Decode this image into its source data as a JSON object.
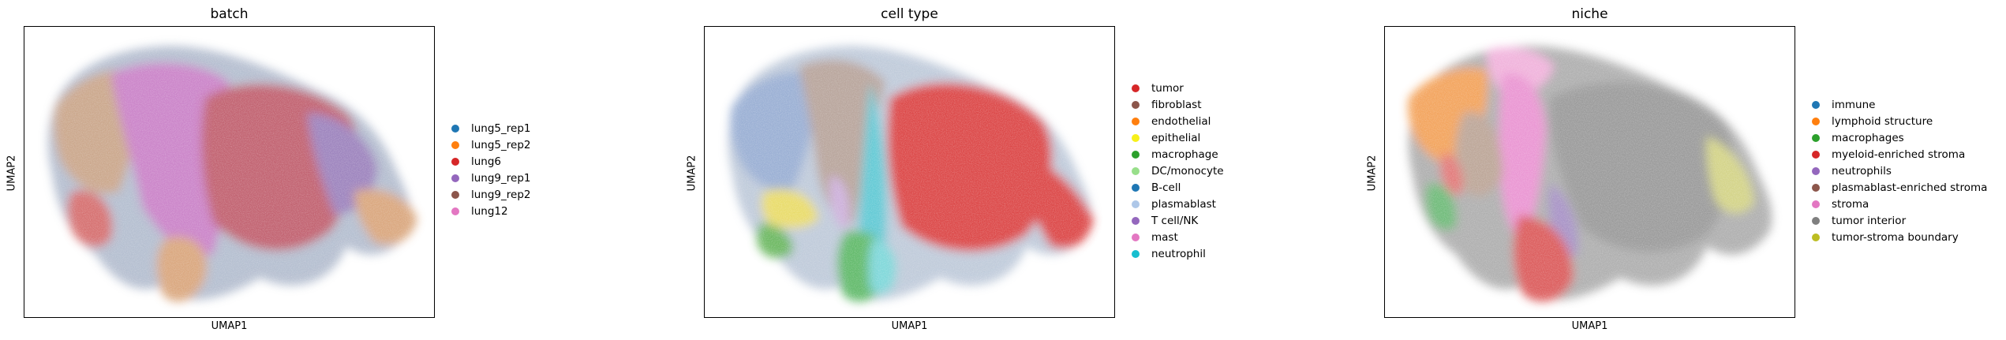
{
  "chart_data": [
    {
      "type": "scatter",
      "title": "batch",
      "xlabel": "UMAP1",
      "ylabel": "UMAP2",
      "legend_placement": "right",
      "grid": false,
      "series": [
        {
          "name": "lung5_rep1",
          "color": "#1f77b4"
        },
        {
          "name": "lung5_rep2",
          "color": "#ff7f0e"
        },
        {
          "name": "lung6",
          "color": "#d62728"
        },
        {
          "name": "lung9_rep1",
          "color": "#9467bd"
        },
        {
          "name": "lung9_rep2",
          "color": "#8c564b"
        },
        {
          "name": "lung12",
          "color": "#e377c2"
        }
      ]
    },
    {
      "type": "scatter",
      "title": "cell type",
      "xlabel": "UMAP1",
      "ylabel": "UMAP2",
      "legend_placement": "right",
      "grid": false,
      "series": [
        {
          "name": "tumor",
          "color": "#d62728"
        },
        {
          "name": "fibroblast",
          "color": "#8c564b"
        },
        {
          "name": "endothelial",
          "color": "#ff7f0e"
        },
        {
          "name": "epithelial",
          "color": "#f7f01a"
        },
        {
          "name": "macrophage",
          "color": "#2ca02c"
        },
        {
          "name": "DC/monocyte",
          "color": "#98df8a"
        },
        {
          "name": "B-cell",
          "color": "#1f77b4"
        },
        {
          "name": "plasmablast",
          "color": "#aec7e8"
        },
        {
          "name": "T cell/NK",
          "color": "#9467bd"
        },
        {
          "name": "mast",
          "color": "#e377c2"
        },
        {
          "name": "neutrophil",
          "color": "#17becf"
        }
      ]
    },
    {
      "type": "scatter",
      "title": "niche",
      "xlabel": "UMAP1",
      "ylabel": "UMAP2",
      "legend_placement": "right",
      "grid": false,
      "series": [
        {
          "name": "immune",
          "color": "#1f77b4"
        },
        {
          "name": "lymphoid structure",
          "color": "#ff7f0e"
        },
        {
          "name": "macrophages",
          "color": "#2ca02c"
        },
        {
          "name": "myeloid-enriched stroma",
          "color": "#d62728"
        },
        {
          "name": "neutrophils",
          "color": "#9467bd"
        },
        {
          "name": "plasmablast-enriched stroma",
          "color": "#8c564b"
        },
        {
          "name": "stroma",
          "color": "#e377c2"
        },
        {
          "name": "tumor interior",
          "color": "#7f7f7f"
        },
        {
          "name": "tumor-stroma boundary",
          "color": "#bcbd22"
        }
      ]
    }
  ]
}
